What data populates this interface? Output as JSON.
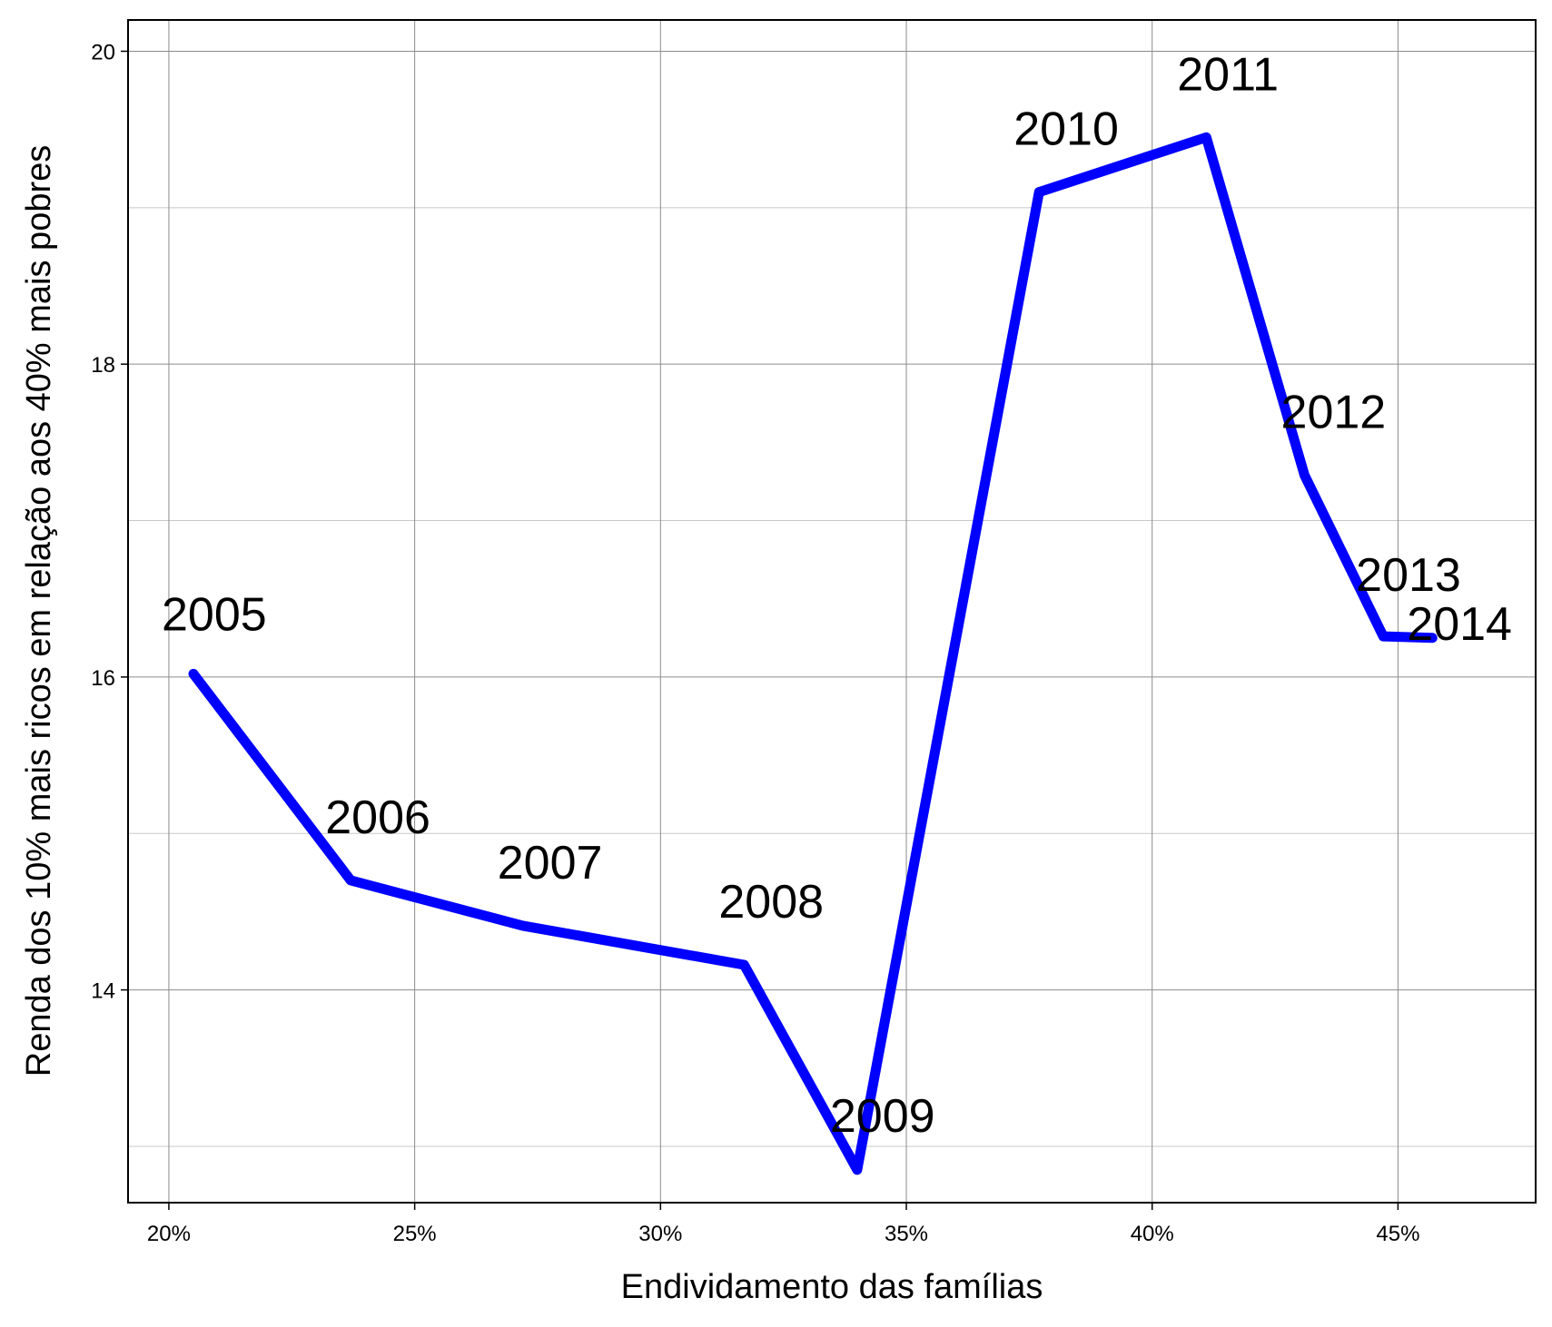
{
  "chart_data": {
    "type": "line",
    "xlabel": "Endividamento das famílias",
    "ylabel": "Renda dos 10% mais ricos em relação aos 40% mais pobres",
    "xlim": [
      0.1917,
      0.478
    ],
    "ylim": [
      12.64,
      20.2
    ],
    "x_ticks": [
      0.2,
      0.25,
      0.3,
      0.35,
      0.4,
      0.45
    ],
    "x_tick_labels": [
      "20%",
      "25%",
      "30%",
      "35%",
      "40%",
      "45%"
    ],
    "y_ticks": [
      14,
      16,
      18,
      20
    ],
    "y_tick_labels": [
      "14",
      "16",
      "18",
      "20"
    ],
    "y_minor_ticks": [
      13,
      15,
      17,
      19
    ],
    "grid": true,
    "line_color": "#0000ff",
    "series": [
      {
        "points": [
          {
            "label": "2005",
            "x": 0.205,
            "y": 16.02
          },
          {
            "label": "2006",
            "x": 0.237,
            "y": 14.7
          },
          {
            "label": "2007",
            "x": 0.272,
            "y": 14.41
          },
          {
            "label": "2008",
            "x": 0.317,
            "y": 14.16
          },
          {
            "label": "2009",
            "x": 0.34,
            "y": 12.85
          },
          {
            "label": "2010",
            "x": 0.377,
            "y": 19.1
          },
          {
            "label": "2011",
            "x": 0.411,
            "y": 19.45
          },
          {
            "label": "2012",
            "x": 0.431,
            "y": 17.29
          },
          {
            "label": "2013",
            "x": 0.447,
            "y": 16.26
          },
          {
            "label": "2014",
            "x": 0.457,
            "y": 16.25
          }
        ]
      }
    ]
  }
}
